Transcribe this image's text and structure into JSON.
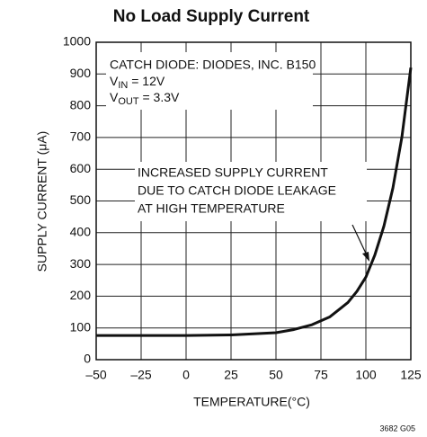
{
  "chart_data": {
    "type": "line",
    "title": "No Load Supply Current",
    "xlabel": "TEMPERATURE(°C)",
    "ylabel": "SUPPLY CURRENT (μA)",
    "x": [
      -50,
      -25,
      0,
      25,
      50,
      60,
      70,
      80,
      90,
      95,
      100,
      105,
      110,
      115,
      120,
      125
    ],
    "series": [
      {
        "name": null,
        "color": "#111111",
        "values": [
          76,
          76,
          76,
          78,
          85,
          95,
          110,
          135,
          180,
          215,
          260,
          330,
          420,
          540,
          700,
          920
        ]
      }
    ],
    "xlim": [
      -50,
      125
    ],
    "xticks": [
      {
        "value": -50,
        "label": "–50"
      },
      {
        "value": -25,
        "label": "–25"
      },
      0,
      25,
      50,
      75,
      100,
      125
    ],
    "ylim": [
      0,
      1000
    ],
    "yticks": [
      0,
      100,
      200,
      300,
      400,
      500,
      600,
      700,
      800,
      900,
      1000
    ],
    "grid": true,
    "annotations": {
      "conditions": [
        "CATCH DIODE: DIODES, INC. B150",
        [
          "V",
          "IN",
          " = 12V"
        ],
        [
          "V",
          "OUT",
          " = 3.3V"
        ]
      ],
      "note": [
        "INCREASED SUPPLY CURRENT",
        "DUE TO CATCH DIODE LEAKAGE",
        "AT HIGH TEMPERATURE"
      ]
    },
    "footnote": "3682 G05"
  }
}
